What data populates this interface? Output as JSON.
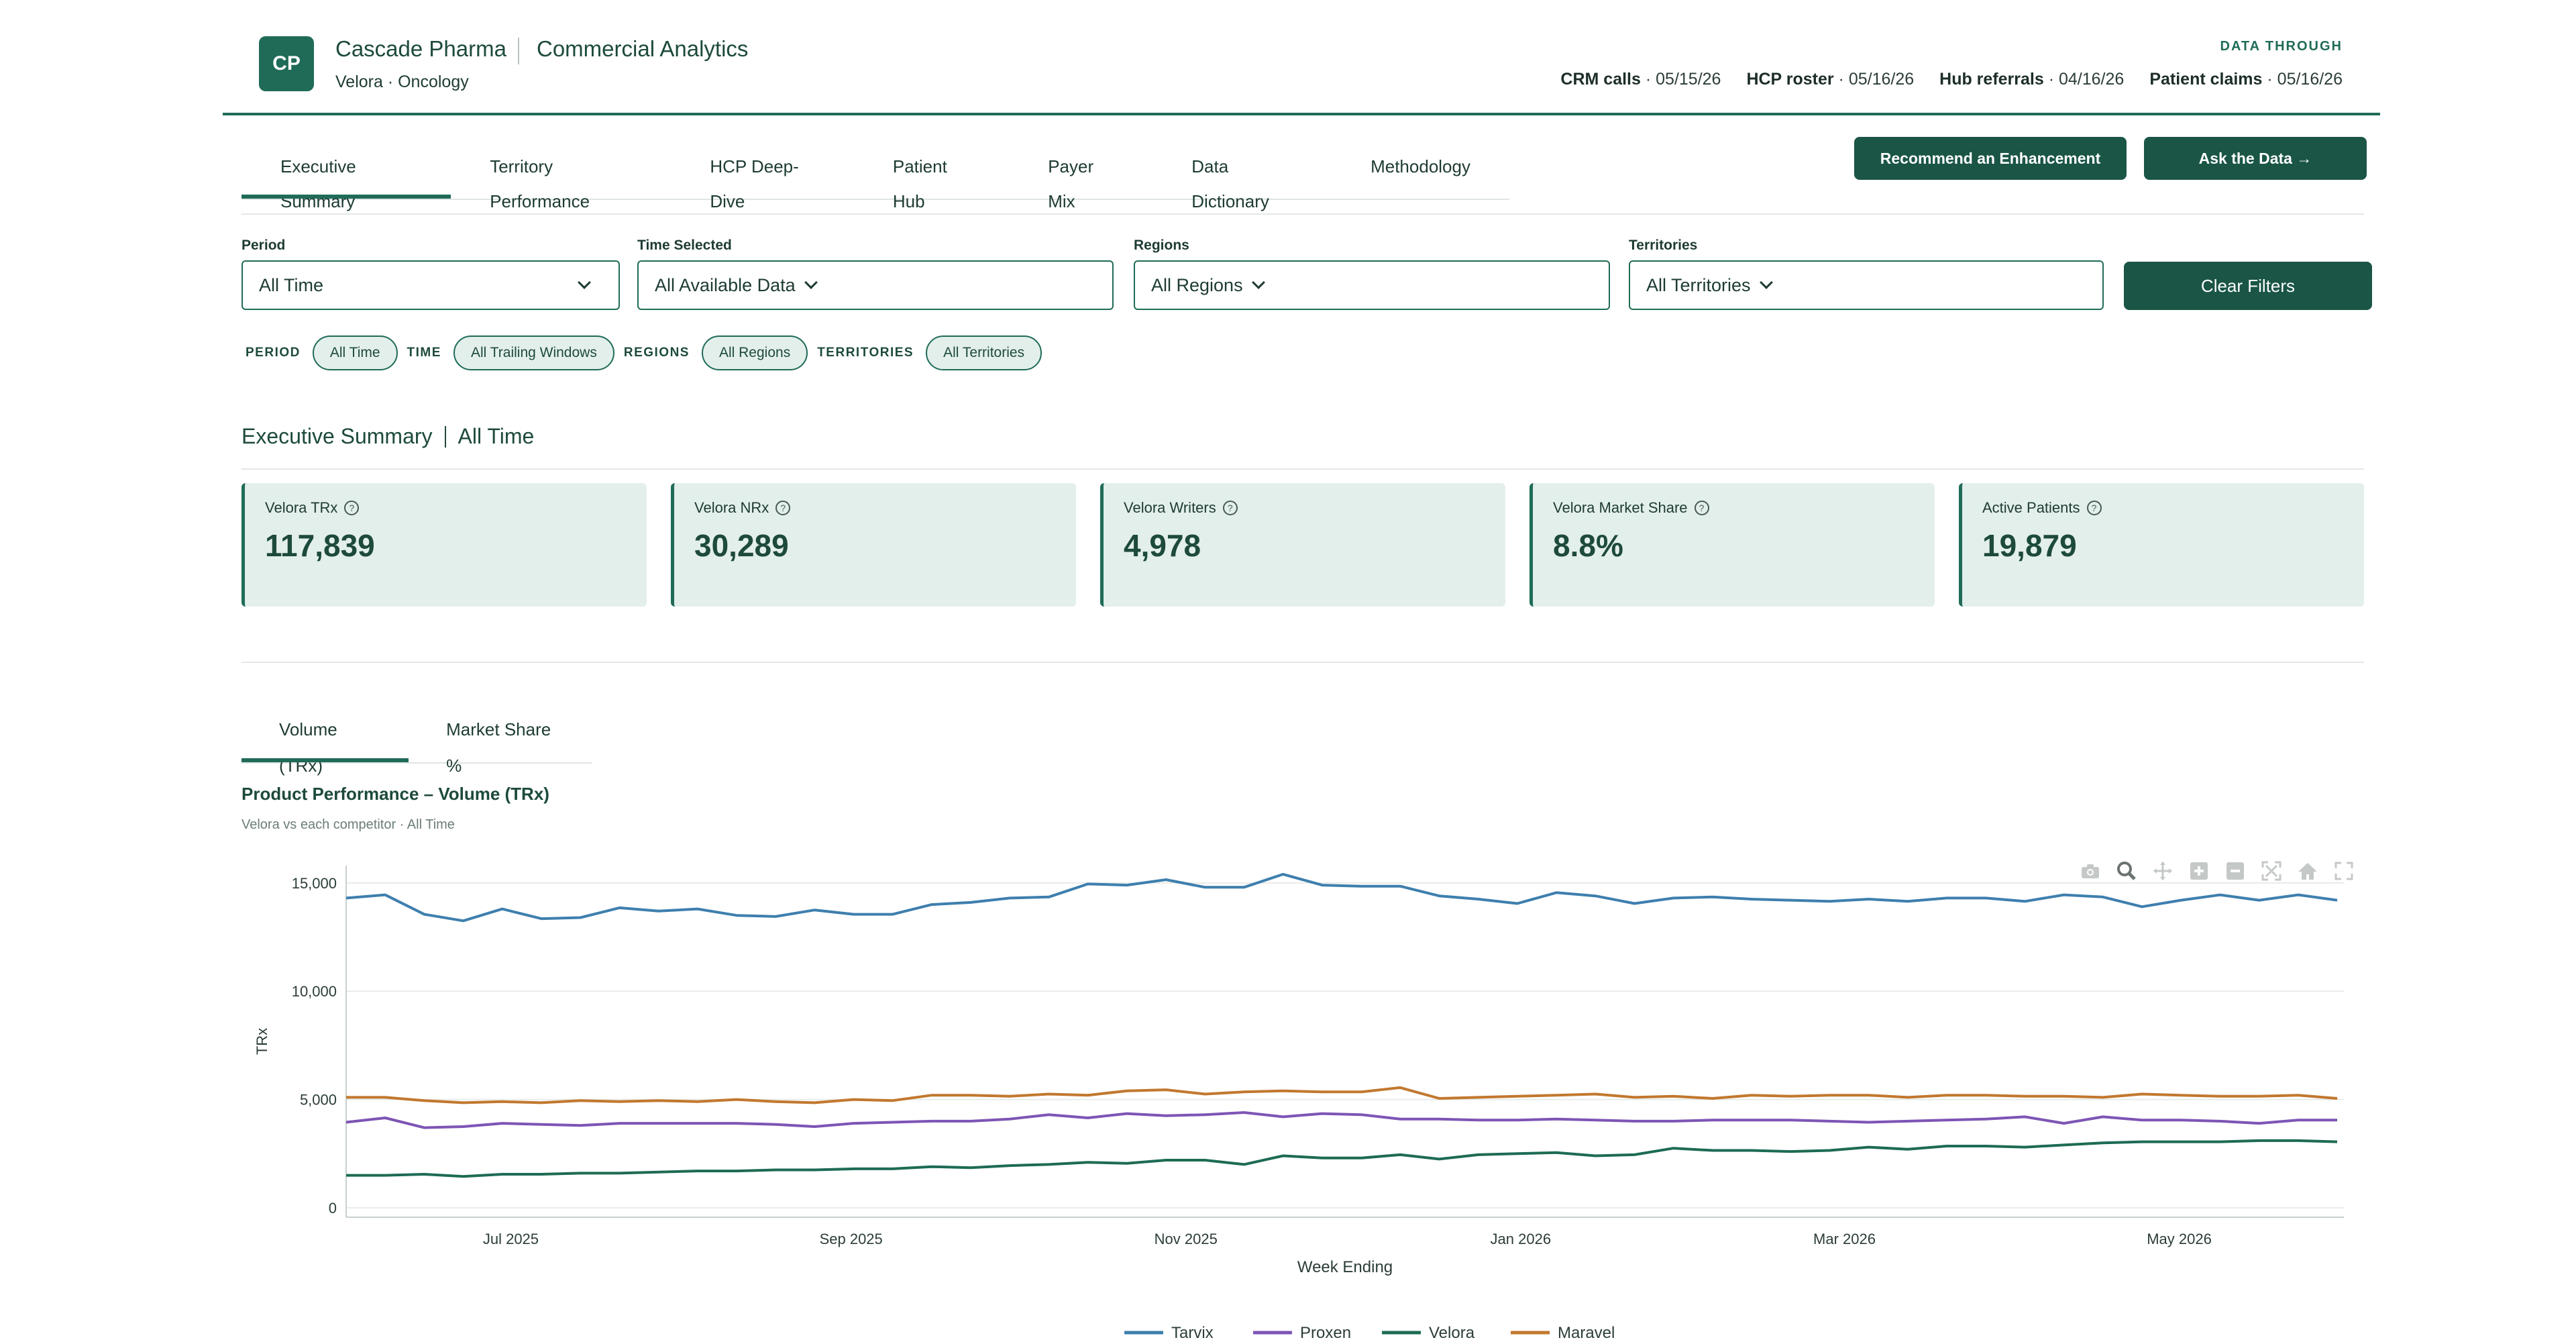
{
  "header": {
    "logo": "CP",
    "company": "Cascade Pharma",
    "app_title": "Commercial Analytics",
    "subtitle": "Velora · Oncology",
    "data_through_label": "DATA THROUGH",
    "sources": [
      {
        "name": "CRM calls",
        "date": "· 05/15/26"
      },
      {
        "name": "HCP roster",
        "date": "· 05/16/26"
      },
      {
        "name": "Hub referrals",
        "date": "· 04/16/26"
      },
      {
        "name": "Patient claims",
        "date": "· 05/16/26"
      }
    ]
  },
  "tabs": [
    "Executive Summary",
    "Territory Performance",
    "HCP Deep-Dive",
    "Patient Hub",
    "Payer Mix",
    "Data Dictionary",
    "Methodology"
  ],
  "actions": {
    "recommend": "Recommend an Enhancement",
    "ask": "Ask the Data →"
  },
  "filters": {
    "period": {
      "label": "Period",
      "value": "All Time"
    },
    "time": {
      "label": "Time Selected",
      "value": "All Available Data"
    },
    "regions": {
      "label": "Regions",
      "value": "All Regions"
    },
    "territories": {
      "label": "Territories",
      "value": "All Territories"
    },
    "clear": "Clear Filters"
  },
  "chips": [
    {
      "label": "PERIOD",
      "value": "All Time"
    },
    {
      "label": "TIME",
      "value": "All Trailing Windows"
    },
    {
      "label": "REGIONS",
      "value": "All Regions"
    },
    {
      "label": "TERRITORIES",
      "value": "All Territories"
    }
  ],
  "section": {
    "title": "Executive Summary",
    "period": "All Time"
  },
  "kpis": [
    {
      "label": "Velora TRx",
      "value": "117,839"
    },
    {
      "label": "Velora NRx",
      "value": "30,289"
    },
    {
      "label": "Velora Writers",
      "value": "4,978"
    },
    {
      "label": "Velora Market Share",
      "value": "8.8%"
    },
    {
      "label": "Active Patients",
      "value": "19,879"
    }
  ],
  "chart_tabs": [
    "Volume (TRx)",
    "Market Share %"
  ],
  "chart_header": {
    "title": "Product Performance – Volume (TRx)",
    "subtitle": "Velora vs each competitor",
    "subtitle_period": "All Time"
  },
  "chart_data": {
    "type": "line",
    "title": "Product Performance – Volume (TRx)",
    "xlabel": "Week Ending",
    "ylabel": "TRx",
    "ylim": [
      0,
      15800
    ],
    "yticks": [
      0,
      5000,
      10000,
      15000
    ],
    "ytick_labels": [
      "0",
      "5,000",
      "10,000",
      "15,000"
    ],
    "xtick_labels": [
      "Jul 2025",
      "Sep 2025",
      "Nov 2025",
      "Jan 2026",
      "Mar 2026",
      "May 2026"
    ],
    "x_start": "2025-06-01",
    "x_end": "2026-05-31",
    "xticks": [
      "2025-07-01",
      "2025-09-01",
      "2025-11-01",
      "2026-01-01",
      "2026-03-01",
      "2026-05-01"
    ],
    "grid": true,
    "legend": "bottom-center",
    "series": [
      {
        "name": "Tarvix",
        "color": "#3e7fae",
        "values": [
          14300,
          14450,
          13550,
          13250,
          13800,
          13350,
          13400,
          13850,
          13700,
          13800,
          13500,
          13450,
          13750,
          13550,
          13550,
          14000,
          14100,
          14300,
          14350,
          14950,
          14900,
          15150,
          14800,
          14800,
          15400,
          14900,
          14850,
          14850,
          14400,
          14250,
          14050,
          14550,
          14400,
          14050,
          14300,
          14350,
          14250,
          14200,
          14150,
          14250,
          14150,
          14300,
          14300,
          14150,
          14450,
          14350,
          13900,
          14200,
          14450,
          14200,
          14450,
          14200
        ]
      },
      {
        "name": "Proxen",
        "color": "#7d55b5",
        "values": [
          3950,
          4150,
          3700,
          3750,
          3900,
          3850,
          3800,
          3900,
          3900,
          3900,
          3900,
          3850,
          3750,
          3900,
          3950,
          4000,
          4000,
          4100,
          4300,
          4150,
          4350,
          4250,
          4300,
          4400,
          4200,
          4350,
          4300,
          4100,
          4100,
          4050,
          4050,
          4100,
          4050,
          4000,
          4000,
          4050,
          4050,
          4050,
          4000,
          3950,
          4000,
          4050,
          4100,
          4200,
          3900,
          4200,
          4050,
          4050,
          4000,
          3900,
          4050,
          4050
        ]
      },
      {
        "name": "Velora",
        "color": "#1d6b54",
        "values": [
          1500,
          1500,
          1550,
          1450,
          1550,
          1550,
          1600,
          1600,
          1650,
          1700,
          1700,
          1750,
          1750,
          1800,
          1800,
          1900,
          1850,
          1950,
          2000,
          2100,
          2050,
          2200,
          2200,
          2000,
          2400,
          2300,
          2300,
          2450,
          2250,
          2450,
          2500,
          2550,
          2400,
          2450,
          2750,
          2650,
          2650,
          2600,
          2650,
          2800,
          2700,
          2850,
          2850,
          2800,
          2900,
          3000,
          3050,
          3050,
          3050,
          3100,
          3100,
          3050
        ]
      },
      {
        "name": "Maravel",
        "color": "#c2782e",
        "values": [
          5100,
          5100,
          4950,
          4850,
          4900,
          4850,
          4950,
          4900,
          4950,
          4900,
          5000,
          4900,
          4850,
          5000,
          4950,
          5200,
          5200,
          5150,
          5250,
          5200,
          5400,
          5450,
          5250,
          5350,
          5400,
          5350,
          5350,
          5550,
          5050,
          5100,
          5150,
          5200,
          5250,
          5100,
          5150,
          5050,
          5200,
          5150,
          5200,
          5200,
          5100,
          5200,
          5200,
          5150,
          5150,
          5100,
          5250,
          5200,
          5150,
          5150,
          5200,
          5050
        ]
      }
    ]
  }
}
